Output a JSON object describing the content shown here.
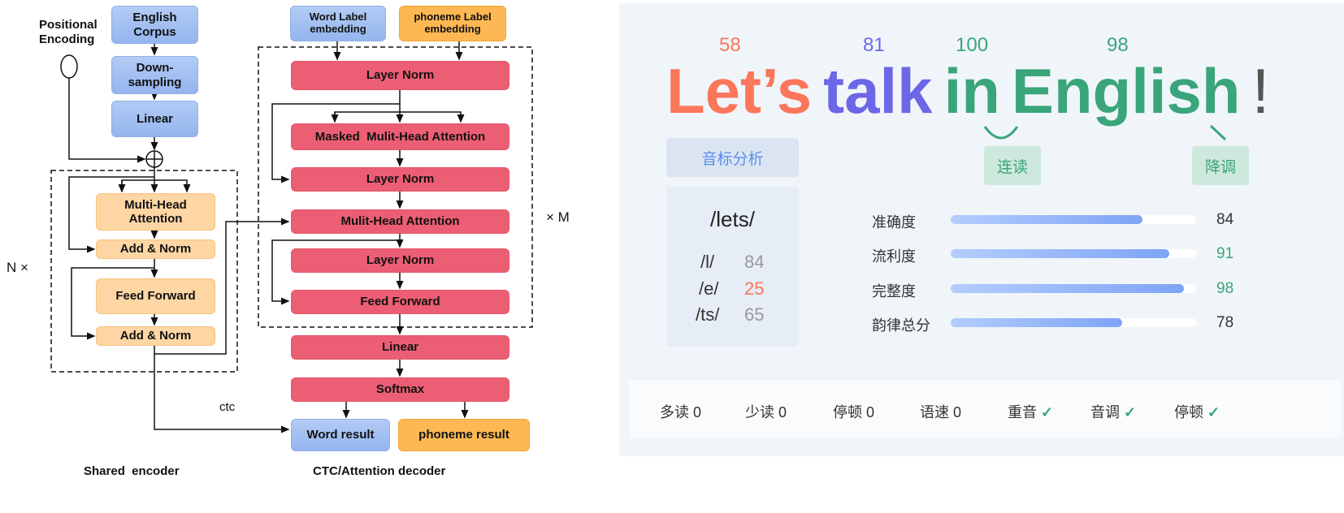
{
  "encoder": {
    "positional_encoding": "Positional Encoding",
    "english_corpus": "English Corpus",
    "downsampling": "Down-sampling",
    "linear": "Linear",
    "multi_head_attention": "Multi-Head Attention",
    "add_norm_1": "Add & Norm",
    "feed_forward": "Feed Forward",
    "add_norm_2": "Add & Norm",
    "repeat": "N ×",
    "caption": "Shared  encoder"
  },
  "decoder": {
    "word_label": "Word Label embedding",
    "phoneme_label": "phoneme Label embedding",
    "layer_norm_1": "Layer Norm",
    "masked_mha": "Masked  Mulit-Head Attention",
    "layer_norm_2": "Layer Norm",
    "mha": "Mulit-Head Attention",
    "layer_norm_3": "Layer Norm",
    "feed_forward": "Feed Forward",
    "linear": "Linear",
    "softmax": "Softmax",
    "word_result": "Word result",
    "phoneme_result": "phoneme result",
    "repeat": "× M",
    "ctc": "ctc",
    "caption": "CTC/Attention decoder"
  },
  "app": {
    "words": [
      {
        "text": "Let’s",
        "score": "58",
        "color": "#fb765a"
      },
      {
        "text": "talk",
        "score": "81",
        "color": "#6c67e6"
      },
      {
        "text": "in",
        "score": "100",
        "color": "#3aa57a"
      },
      {
        "text": "English",
        "score": "98",
        "color": "#3aa57a"
      }
    ],
    "punct": "!",
    "tags": {
      "phonetic": "音标分析",
      "linking": "连读",
      "falling": "降调"
    },
    "phoneme_card": {
      "word": "/lets/",
      "rows": [
        {
          "ph": "/l/",
          "score": "84",
          "color": "#999999"
        },
        {
          "ph": "/e/",
          "score": "25",
          "color": "#fb765a"
        },
        {
          "ph": "/ts/",
          "score": "65",
          "color": "#999999"
        }
      ]
    },
    "metrics": [
      {
        "label": "准确度",
        "value": "84",
        "percent": 78,
        "color": "#333333"
      },
      {
        "label": "流利度",
        "value": "91",
        "percent": 89,
        "color": "#3aa57a"
      },
      {
        "label": "完整度",
        "value": "98",
        "percent": 95,
        "color": "#3aa57a"
      },
      {
        "label": "韵律总分",
        "value": "78",
        "percent": 70,
        "color": "#333333"
      }
    ],
    "summary": [
      {
        "label": "多读 0"
      },
      {
        "label": "少读 0"
      },
      {
        "label": "停顿 0"
      },
      {
        "label": "语速 0"
      },
      {
        "label": "重音",
        "check": "✓"
      },
      {
        "label": "音调",
        "check": "✓"
      },
      {
        "label": "停顿",
        "check": "✓"
      }
    ]
  }
}
